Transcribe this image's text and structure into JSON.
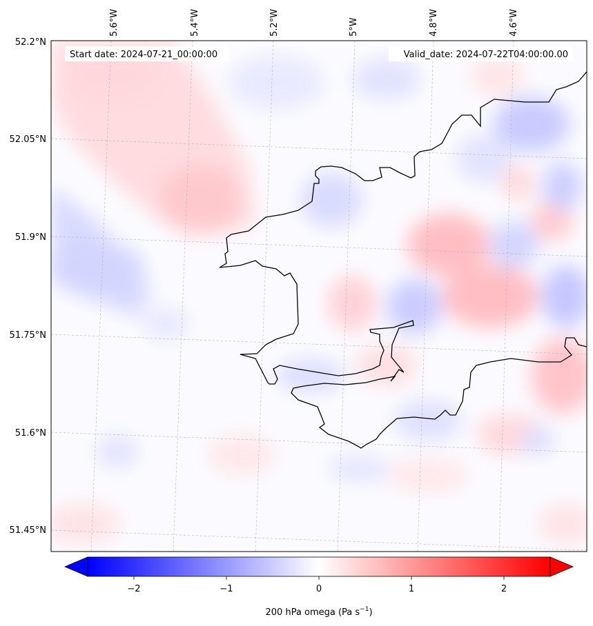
{
  "header": {
    "start_date": "Start date: 2024-07-21_00:00:00",
    "valid_date": "Valid_date: 2024-07-22T04:00:00.00"
  },
  "lon_ticks": [
    {
      "label": "5.6°W",
      "value": -5.6
    },
    {
      "label": "5.4°W",
      "value": -5.4
    },
    {
      "label": "5.2°W",
      "value": -5.2
    },
    {
      "label": "5°W",
      "value": -5.0
    },
    {
      "label": "4.8°W",
      "value": -4.8
    },
    {
      "label": "4.6°W",
      "value": -4.6
    }
  ],
  "lat_ticks": [
    {
      "label": "52.2°N",
      "value": 52.2
    },
    {
      "label": "52.05°N",
      "value": 52.05
    },
    {
      "label": "51.9°N",
      "value": 51.9
    },
    {
      "label": "51.75°N",
      "value": 51.75
    },
    {
      "label": "51.6°N",
      "value": 51.6
    },
    {
      "label": "51.45°N",
      "value": 51.45
    }
  ],
  "colorbar": {
    "ticks": [
      {
        "label": "−2",
        "value": -2
      },
      {
        "label": "−1",
        "value": -1
      },
      {
        "label": "0",
        "value": 0
      },
      {
        "label": "1",
        "value": 1
      },
      {
        "label": "2",
        "value": 2
      }
    ],
    "range": [
      -2.5,
      2.5
    ],
    "label_main": "200 hPa omega (Pa s",
    "label_sup": "−1",
    "label_end": ")",
    "colors": {
      "low": "#0000ff",
      "mid": "#ffffff",
      "high": "#ff0000"
    }
  },
  "colors": {
    "coastline": "#000000",
    "grid": "#b0b0b0"
  }
}
